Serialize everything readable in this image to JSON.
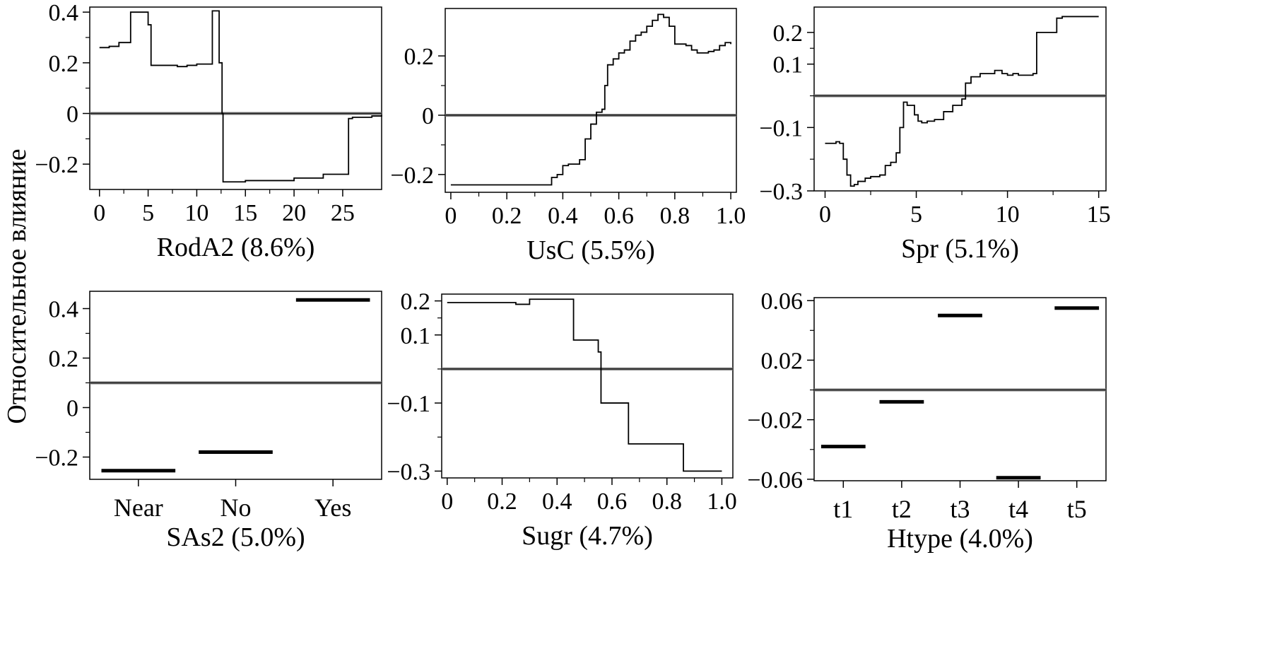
{
  "figure": {
    "ylabel": "Относительное влияние"
  },
  "chart_data": [
    {
      "type": "line",
      "xlabel": "RodA2 (8.6%)",
      "xlim": [
        -1,
        29
      ],
      "ylim": [
        -0.3,
        0.42
      ],
      "xticks": [
        0,
        5,
        10,
        15,
        20,
        25
      ],
      "xtick_labels": [
        "0",
        "5",
        "10",
        "15",
        "20",
        "25"
      ],
      "yticks": [
        -0.2,
        0,
        0.2,
        0.4
      ],
      "ytick_labels": [
        "−0.2",
        "0",
        "0.2",
        "0.4"
      ],
      "reference_line": 0,
      "x": [
        0,
        1,
        2,
        3,
        3.2,
        4.8,
        5.0,
        5.3,
        7,
        8,
        9,
        10,
        11.5,
        11.6,
        12.2,
        12.3,
        12.6,
        12.7,
        15,
        20,
        23,
        25.5,
        25.6,
        26,
        28,
        29
      ],
      "y": [
        0.26,
        0.265,
        0.28,
        0.28,
        0.4,
        0.4,
        0.35,
        0.19,
        0.19,
        0.185,
        0.19,
        0.195,
        0.195,
        0.405,
        0.405,
        0.2,
        0.0,
        -0.27,
        -0.265,
        -0.255,
        -0.24,
        -0.24,
        -0.02,
        -0.015,
        -0.01,
        -0.005
      ]
    },
    {
      "type": "line",
      "xlabel": "UsC (5.5%)",
      "xlim": [
        -0.02,
        1.02
      ],
      "ylim": [
        -0.26,
        0.36
      ],
      "xticks": [
        0,
        0.2,
        0.4,
        0.6,
        0.8,
        1.0
      ],
      "xtick_labels": [
        "0",
        "0.2",
        "0.4",
        "0.6",
        "0.8",
        "1.0"
      ],
      "yticks": [
        -0.2,
        0,
        0.2
      ],
      "ytick_labels": [
        "−0.2",
        "0",
        "0.2"
      ],
      "reference_line": 0,
      "x": [
        0,
        0.1,
        0.2,
        0.34,
        0.36,
        0.38,
        0.4,
        0.42,
        0.46,
        0.48,
        0.5,
        0.52,
        0.54,
        0.55,
        0.56,
        0.58,
        0.6,
        0.62,
        0.64,
        0.66,
        0.68,
        0.7,
        0.72,
        0.74,
        0.76,
        0.78,
        0.8,
        0.82,
        0.84,
        0.86,
        0.88,
        0.9,
        0.92,
        0.94,
        0.96,
        0.98,
        1.0
      ],
      "y": [
        -0.235,
        -0.235,
        -0.235,
        -0.235,
        -0.21,
        -0.2,
        -0.17,
        -0.165,
        -0.15,
        -0.08,
        -0.03,
        0.01,
        0.02,
        0.1,
        0.17,
        0.19,
        0.21,
        0.22,
        0.25,
        0.27,
        0.28,
        0.3,
        0.32,
        0.34,
        0.33,
        0.3,
        0.24,
        0.24,
        0.235,
        0.22,
        0.21,
        0.21,
        0.215,
        0.22,
        0.235,
        0.245,
        0.24
      ]
    },
    {
      "type": "line",
      "xlabel": "Spr (5.1%)",
      "xlim": [
        -0.6,
        15.4
      ],
      "ylim": [
        -0.3,
        0.28
      ],
      "xticks": [
        0,
        5,
        10,
        15
      ],
      "xtick_labels": [
        "0",
        "5",
        "10",
        "15"
      ],
      "yticks": [
        -0.3,
        -0.1,
        0.1,
        0.2
      ],
      "ytick_labels": [
        "−0.3",
        "−0.1",
        "0.1",
        "0.2"
      ],
      "reference_line": 0,
      "x": [
        0,
        0.6,
        0.8,
        1.0,
        1.2,
        1.4,
        1.6,
        1.8,
        2.2,
        2.5,
        3.0,
        3.3,
        3.6,
        3.9,
        4.1,
        4.3,
        4.5,
        4.9,
        5.1,
        5.3,
        5.6,
        6.0,
        6.5,
        7.0,
        7.5,
        7.7,
        8.0,
        8.5,
        9.0,
        9.3,
        9.7,
        10.0,
        10.3,
        10.6,
        11.0,
        11.4,
        11.6,
        12.5,
        12.7,
        13,
        14,
        15
      ],
      "y": [
        -0.15,
        -0.145,
        -0.15,
        -0.2,
        -0.25,
        -0.285,
        -0.28,
        -0.27,
        -0.26,
        -0.255,
        -0.25,
        -0.22,
        -0.21,
        -0.18,
        -0.1,
        -0.02,
        -0.03,
        -0.06,
        -0.08,
        -0.085,
        -0.08,
        -0.075,
        -0.05,
        -0.03,
        -0.01,
        0.04,
        0.06,
        0.07,
        0.07,
        0.08,
        0.07,
        0.065,
        0.07,
        0.065,
        0.065,
        0.07,
        0.2,
        0.2,
        0.245,
        0.25,
        0.25,
        0.25
      ]
    },
    {
      "type": "bar",
      "xlabel": "SAs2 (5.0%)",
      "xlim": [
        0,
        3
      ],
      "ylim": [
        -0.29,
        0.47
      ],
      "categories": [
        "Near",
        "No",
        "Yes"
      ],
      "values": [
        -0.255,
        -0.18,
        0.435
      ],
      "yticks": [
        -0.2,
        0,
        0.2,
        0.4
      ],
      "ytick_labels": [
        "−0.2",
        "0",
        "0.2",
        "0.4"
      ],
      "reference_line": 0.1
    },
    {
      "type": "line",
      "xlabel": "Sugr (4.7%)",
      "xlim": [
        -0.02,
        1.04
      ],
      "ylim": [
        -0.32,
        0.22
      ],
      "xticks": [
        0,
        0.2,
        0.4,
        0.6,
        0.8,
        1.0
      ],
      "xtick_labels": [
        "0",
        "0.2",
        "0.4",
        "0.6",
        "0.8",
        "1.0"
      ],
      "yticks": [
        -0.3,
        -0.1,
        0.1,
        0.2
      ],
      "ytick_labels": [
        "−0.3",
        "−0.1",
        "0.1",
        "0.2"
      ],
      "reference_line": 0,
      "x": [
        0,
        0.15,
        0.25,
        0.3,
        0.45,
        0.46,
        0.5,
        0.55,
        0.56,
        0.65,
        0.66,
        0.85,
        0.86,
        1.0
      ],
      "y": [
        0.195,
        0.195,
        0.19,
        0.205,
        0.205,
        0.085,
        0.085,
        0.05,
        -0.1,
        -0.1,
        -0.22,
        -0.22,
        -0.3,
        -0.3
      ]
    },
    {
      "type": "bar",
      "xlabel": "Htype (4.0%)",
      "xlim": [
        0,
        5
      ],
      "ylim": [
        -0.061,
        0.062
      ],
      "categories": [
        "t1",
        "t2",
        "t3",
        "t4",
        "t5"
      ],
      "values": [
        -0.038,
        -0.008,
        0.05,
        -0.059,
        0.055
      ],
      "yticks": [
        -0.06,
        -0.02,
        0.02,
        0.06
      ],
      "ytick_labels": [
        "−0.06",
        "−0.02",
        "0.02",
        "0.06"
      ],
      "reference_line": 0
    }
  ]
}
